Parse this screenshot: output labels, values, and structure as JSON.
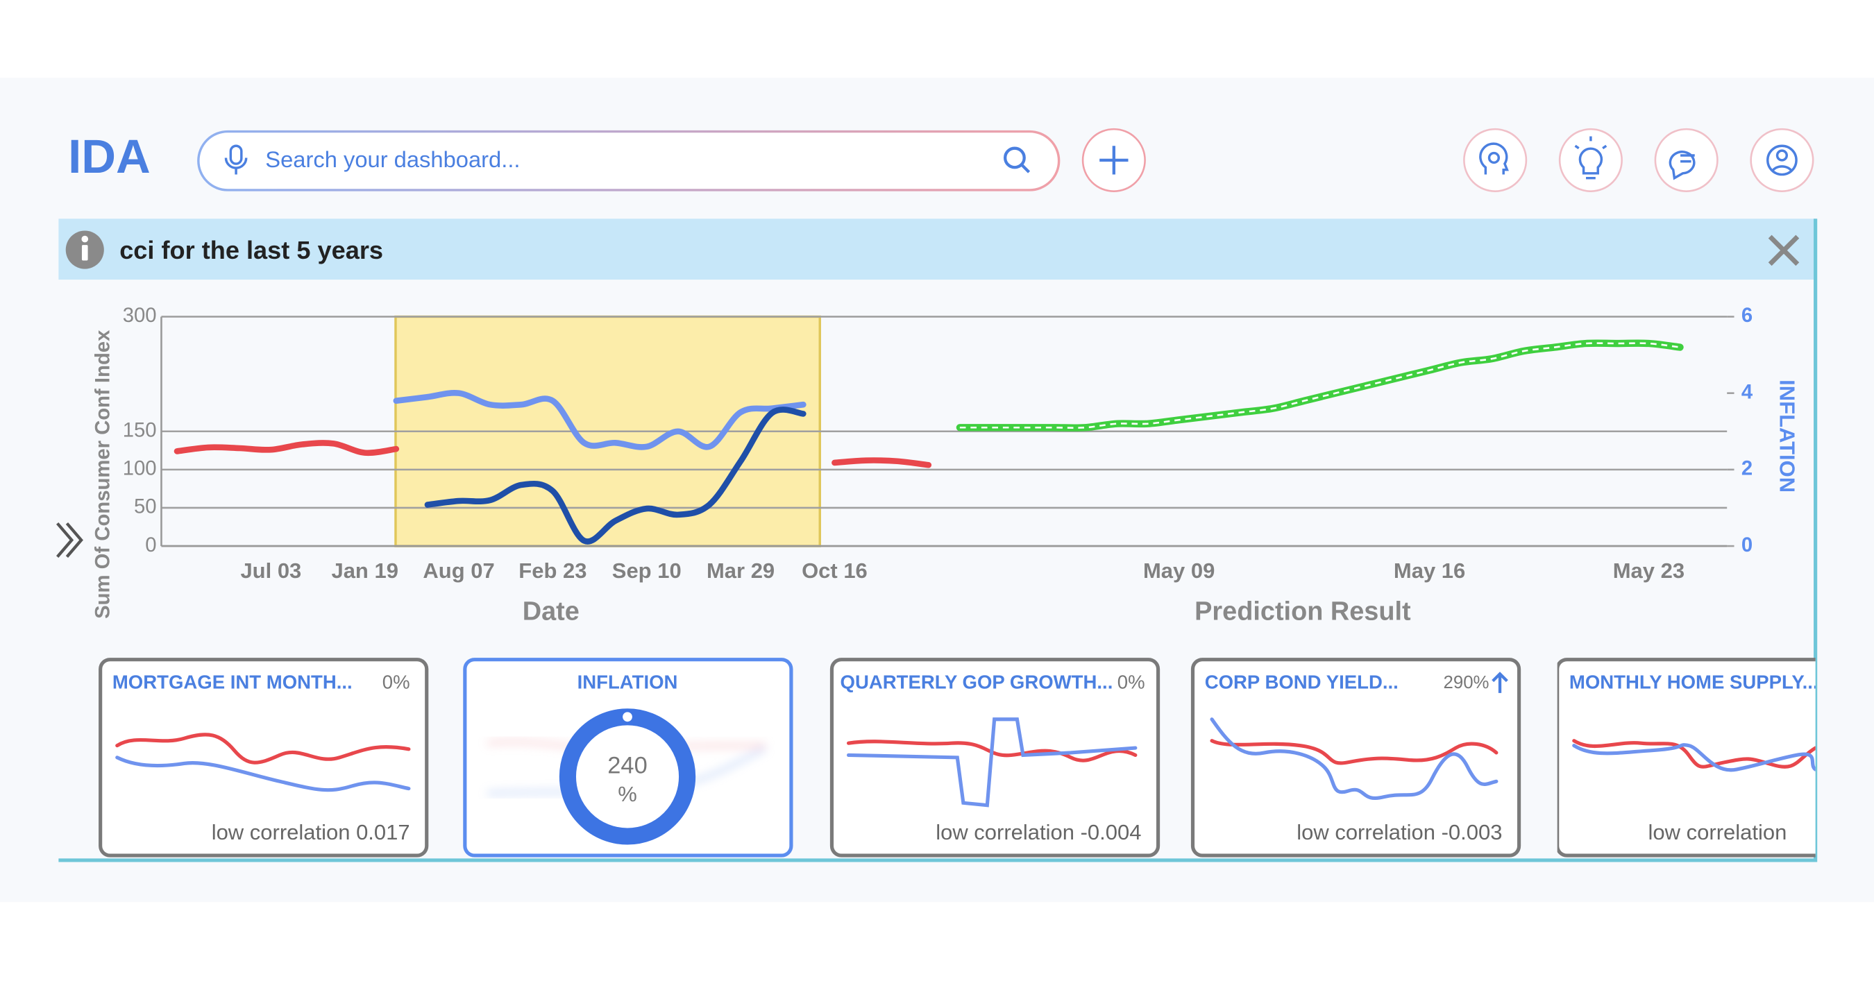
{
  "header": {
    "logo": "IDA",
    "search_placeholder": "Search your dashboard..."
  },
  "panel": {
    "title": "cci for the last 5 years"
  },
  "chart_data": {
    "type": "line",
    "ylabel": "Sum Of Consumer  Conf Index",
    "y2label": "INFLATION",
    "xlabels": [
      "Date",
      "Prediction Result"
    ],
    "categories": [
      null,
      null,
      null,
      "Jul 03",
      null,
      null,
      "Jan 19",
      null,
      null,
      "Aug 07",
      null,
      null,
      "Feb 23",
      null,
      null,
      "Sep 10",
      null,
      null,
      "Mar 29",
      null,
      null,
      "Oct 16",
      null,
      null,
      null,
      null,
      null,
      null,
      null,
      null,
      null,
      null,
      "May 09",
      null,
      null,
      null,
      null,
      null,
      null,
      null,
      "May 16",
      null,
      null,
      null,
      null,
      null,
      null,
      "May 23",
      null,
      null
    ],
    "ylim": [
      0,
      300
    ],
    "yticks": [
      0,
      50,
      100,
      150,
      300
    ],
    "y2lim": [
      0,
      6
    ],
    "y2ticks": [
      0,
      2,
      4,
      6
    ],
    "grid": true,
    "series": [
      {
        "color": "#e8474c",
        "values": [
          124,
          129,
          128,
          126,
          133,
          134,
          122,
          127,
          null,
          null,
          null,
          null,
          null,
          null,
          null,
          null,
          null,
          null,
          null,
          null,
          null,
          109,
          112,
          111,
          106,
          null,
          null,
          null,
          null,
          null,
          null,
          null,
          null,
          null,
          null,
          null,
          null,
          null,
          null,
          null,
          null,
          null,
          null,
          null,
          null,
          null,
          null,
          null,
          null,
          null
        ]
      },
      {
        "color": "#6f93ee",
        "axis": "y2",
        "values": [
          null,
          null,
          null,
          null,
          null,
          null,
          null,
          3.8,
          3.9,
          4.0,
          3.7,
          3.7,
          3.8,
          2.7,
          2.7,
          2.6,
          3.0,
          2.6,
          3.5,
          3.6,
          3.7,
          null,
          null,
          null,
          null,
          null,
          null,
          null,
          null,
          null,
          null,
          null,
          null,
          null,
          null,
          null,
          null,
          null,
          null,
          null,
          null,
          null,
          null,
          null,
          null,
          null,
          null,
          null,
          null,
          null
        ]
      },
      {
        "color": "#1f4fa8",
        "values": [
          null,
          null,
          null,
          null,
          null,
          null,
          null,
          null,
          54,
          59,
          60,
          80,
          72,
          7,
          33,
          49,
          41,
          54,
          111,
          174,
          173,
          null,
          null,
          null,
          null,
          null,
          null,
          null,
          null,
          null,
          null,
          null,
          null,
          null,
          null,
          null,
          null,
          null,
          null,
          null,
          null,
          null,
          null,
          null,
          null,
          null,
          null,
          null,
          null,
          null
        ]
      },
      {
        "color": "#3fcf3f",
        "axis": "y2",
        "dashed": true,
        "values": [
          null,
          null,
          null,
          null,
          null,
          null,
          null,
          null,
          null,
          null,
          null,
          null,
          null,
          null,
          null,
          null,
          null,
          null,
          null,
          null,
          null,
          null,
          null,
          null,
          null,
          3.1,
          3.1,
          3.1,
          3.1,
          3.1,
          3.2,
          3.2,
          3.3,
          3.4,
          3.5,
          3.6,
          3.8,
          4.0,
          4.2,
          4.4,
          4.6,
          4.8,
          4.9,
          5.1,
          5.2,
          5.3,
          5.3,
          5.3,
          5.2,
          null
        ]
      }
    ]
  },
  "cards": [
    {
      "title": "MORTGAGE INT MONTH...",
      "change": "0%",
      "note": "low correlation 0.017"
    },
    {
      "title": "INFLATION",
      "value": "240",
      "unit": "%"
    },
    {
      "title": "QUARTERLY GOP GROWTH...",
      "change": "0%",
      "note": "low correlation -0.004"
    },
    {
      "title": "CORP BOND YIELD...",
      "change": "290%",
      "note": "low correlation -0.003"
    },
    {
      "title": "MONTHLY HOME SUPPLY...",
      "note": "low correlation"
    }
  ]
}
